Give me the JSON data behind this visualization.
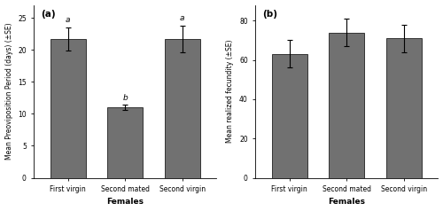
{
  "chart_a": {
    "title": "(a)",
    "categories": [
      "First virgin",
      "Second mated",
      "Second virgin"
    ],
    "values": [
      21.7,
      11.0,
      21.7
    ],
    "errors": [
      1.8,
      0.4,
      2.1
    ],
    "letters": [
      "a",
      "b",
      "a"
    ],
    "ylabel": "Mean Preoviposition Period (days) (±SE)",
    "xlabel": "Females",
    "ylim": [
      0,
      27
    ],
    "yticks": [
      0,
      5,
      10,
      15,
      20,
      25
    ],
    "bar_color": "#717171",
    "bar_width": 0.62
  },
  "chart_b": {
    "title": "(b)",
    "categories": [
      "First virgin",
      "Second mated",
      "Second virgin"
    ],
    "values": [
      63,
      74,
      71
    ],
    "errors": [
      7,
      7,
      7
    ],
    "letters": [
      "",
      "",
      ""
    ],
    "ylabel": "Mean realized fecundity (±SE)",
    "xlabel": "Females",
    "ylim": [
      0,
      88
    ],
    "yticks": [
      0,
      20,
      40,
      60,
      80
    ],
    "bar_color": "#717171",
    "bar_width": 0.62
  },
  "figure_bg": "#ffffff",
  "axes_bg": "#ffffff",
  "ylabel_fontsize": 5.5,
  "title_fontsize": 7.5,
  "xlabel_fontsize": 6.5,
  "tick_fontsize": 5.5,
  "letter_fontsize": 6.5
}
